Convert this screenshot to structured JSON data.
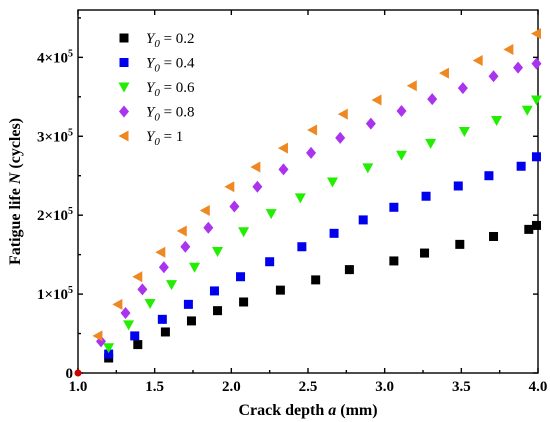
{
  "chart_data": {
    "type": "scatter",
    "title": "",
    "xlabel": "Crack depth a (mm)",
    "ylabel": "Fatigue life N (cycles)",
    "xlabel_parts": {
      "text": "Crack depth ",
      "var": "a",
      "unit": " (mm)"
    },
    "ylabel_parts": {
      "text": "Fatigue life ",
      "var": "N",
      "unit": " (cycles)"
    },
    "xlim": [
      1.0,
      4.0
    ],
    "ylim": [
      0,
      460000
    ],
    "xticks": [
      1.0,
      1.5,
      2.0,
      2.5,
      3.0,
      3.5,
      4.0
    ],
    "xtick_labels": [
      "1.0",
      "1.5",
      "2.0",
      "2.5",
      "3.0",
      "3.5",
      "4.0"
    ],
    "yticks": [
      0,
      100000,
      200000,
      300000,
      400000
    ],
    "ytick_labels": [
      {
        "mant": "0",
        "exp": ""
      },
      {
        "mant": "1×10",
        "exp": "5"
      },
      {
        "mant": "2×10",
        "exp": "5"
      },
      {
        "mant": "3×10",
        "exp": "5"
      },
      {
        "mant": "4×10",
        "exp": "5"
      }
    ],
    "grid": false,
    "legend_position": "top-left",
    "series": [
      {
        "name": "Y0 = 0.2",
        "legend_var": "Y",
        "legend_sub": "0",
        "legend_value": " = 0.2",
        "marker": "square",
        "color": "#000000",
        "x": [
          1.2,
          1.39,
          1.57,
          1.74,
          1.91,
          2.08,
          2.32,
          2.55,
          2.77,
          3.06,
          3.26,
          3.49,
          3.71,
          3.94,
          3.99
        ],
        "y": [
          19000,
          36000,
          52000,
          66000,
          79000,
          90000,
          105000,
          118000,
          131000,
          142000,
          152000,
          163000,
          173000,
          182000,
          187000
        ]
      },
      {
        "name": "Y0 = 0.4",
        "legend_var": "Y",
        "legend_sub": "0",
        "legend_value": " = 0.4",
        "marker": "square",
        "color": "#0000ee",
        "x": [
          1.2,
          1.37,
          1.55,
          1.72,
          1.89,
          2.06,
          2.25,
          2.46,
          2.67,
          2.86,
          3.06,
          3.27,
          3.48,
          3.68,
          3.89,
          3.99
        ],
        "y": [
          24000,
          47000,
          68000,
          87000,
          104000,
          122000,
          141000,
          160000,
          177000,
          194000,
          210000,
          224000,
          237000,
          250000,
          262000,
          274000
        ]
      },
      {
        "name": "Y0 = 0.6",
        "legend_var": "Y",
        "legend_sub": "0",
        "legend_value": " = 0.6",
        "marker": "triangle-down",
        "color": "#22ee00",
        "x": [
          1.2,
          1.33,
          1.47,
          1.61,
          1.76,
          1.91,
          2.08,
          2.26,
          2.45,
          2.66,
          2.89,
          3.11,
          3.3,
          3.52,
          3.73,
          3.93,
          3.99
        ],
        "y": [
          32000,
          61000,
          88000,
          112000,
          134000,
          154000,
          179000,
          202000,
          222000,
          242000,
          260000,
          276000,
          291000,
          306000,
          320000,
          333000,
          346000
        ]
      },
      {
        "name": "Y0 = 0.8",
        "legend_var": "Y",
        "legend_sub": "0",
        "legend_value": " = 0.8",
        "marker": "diamond",
        "color": "#aa33ee",
        "x": [
          1.15,
          1.31,
          1.42,
          1.56,
          1.7,
          1.85,
          2.02,
          2.17,
          2.34,
          2.52,
          2.71,
          2.91,
          3.11,
          3.31,
          3.51,
          3.71,
          3.87,
          3.99
        ],
        "y": [
          40000,
          76000,
          106000,
          134000,
          160000,
          184000,
          211000,
          236000,
          258000,
          279000,
          298000,
          316000,
          332000,
          347000,
          361000,
          376000,
          387000,
          392000
        ]
      },
      {
        "name": "Y0 = 1",
        "legend_var": "Y",
        "legend_sub": "0",
        "legend_value": " = 1",
        "marker": "triangle-left",
        "color": "#ee8822",
        "x": [
          1.13,
          1.26,
          1.39,
          1.54,
          1.68,
          1.83,
          1.99,
          2.16,
          2.34,
          2.53,
          2.73,
          2.95,
          3.18,
          3.39,
          3.61,
          3.81,
          3.99
        ],
        "y": [
          47000,
          87000,
          122000,
          153000,
          180000,
          206000,
          236000,
          261000,
          285000,
          308000,
          328000,
          346000,
          364000,
          380000,
          396000,
          410000,
          430000
        ]
      }
    ],
    "origin_marker_color": "#cc0000"
  }
}
